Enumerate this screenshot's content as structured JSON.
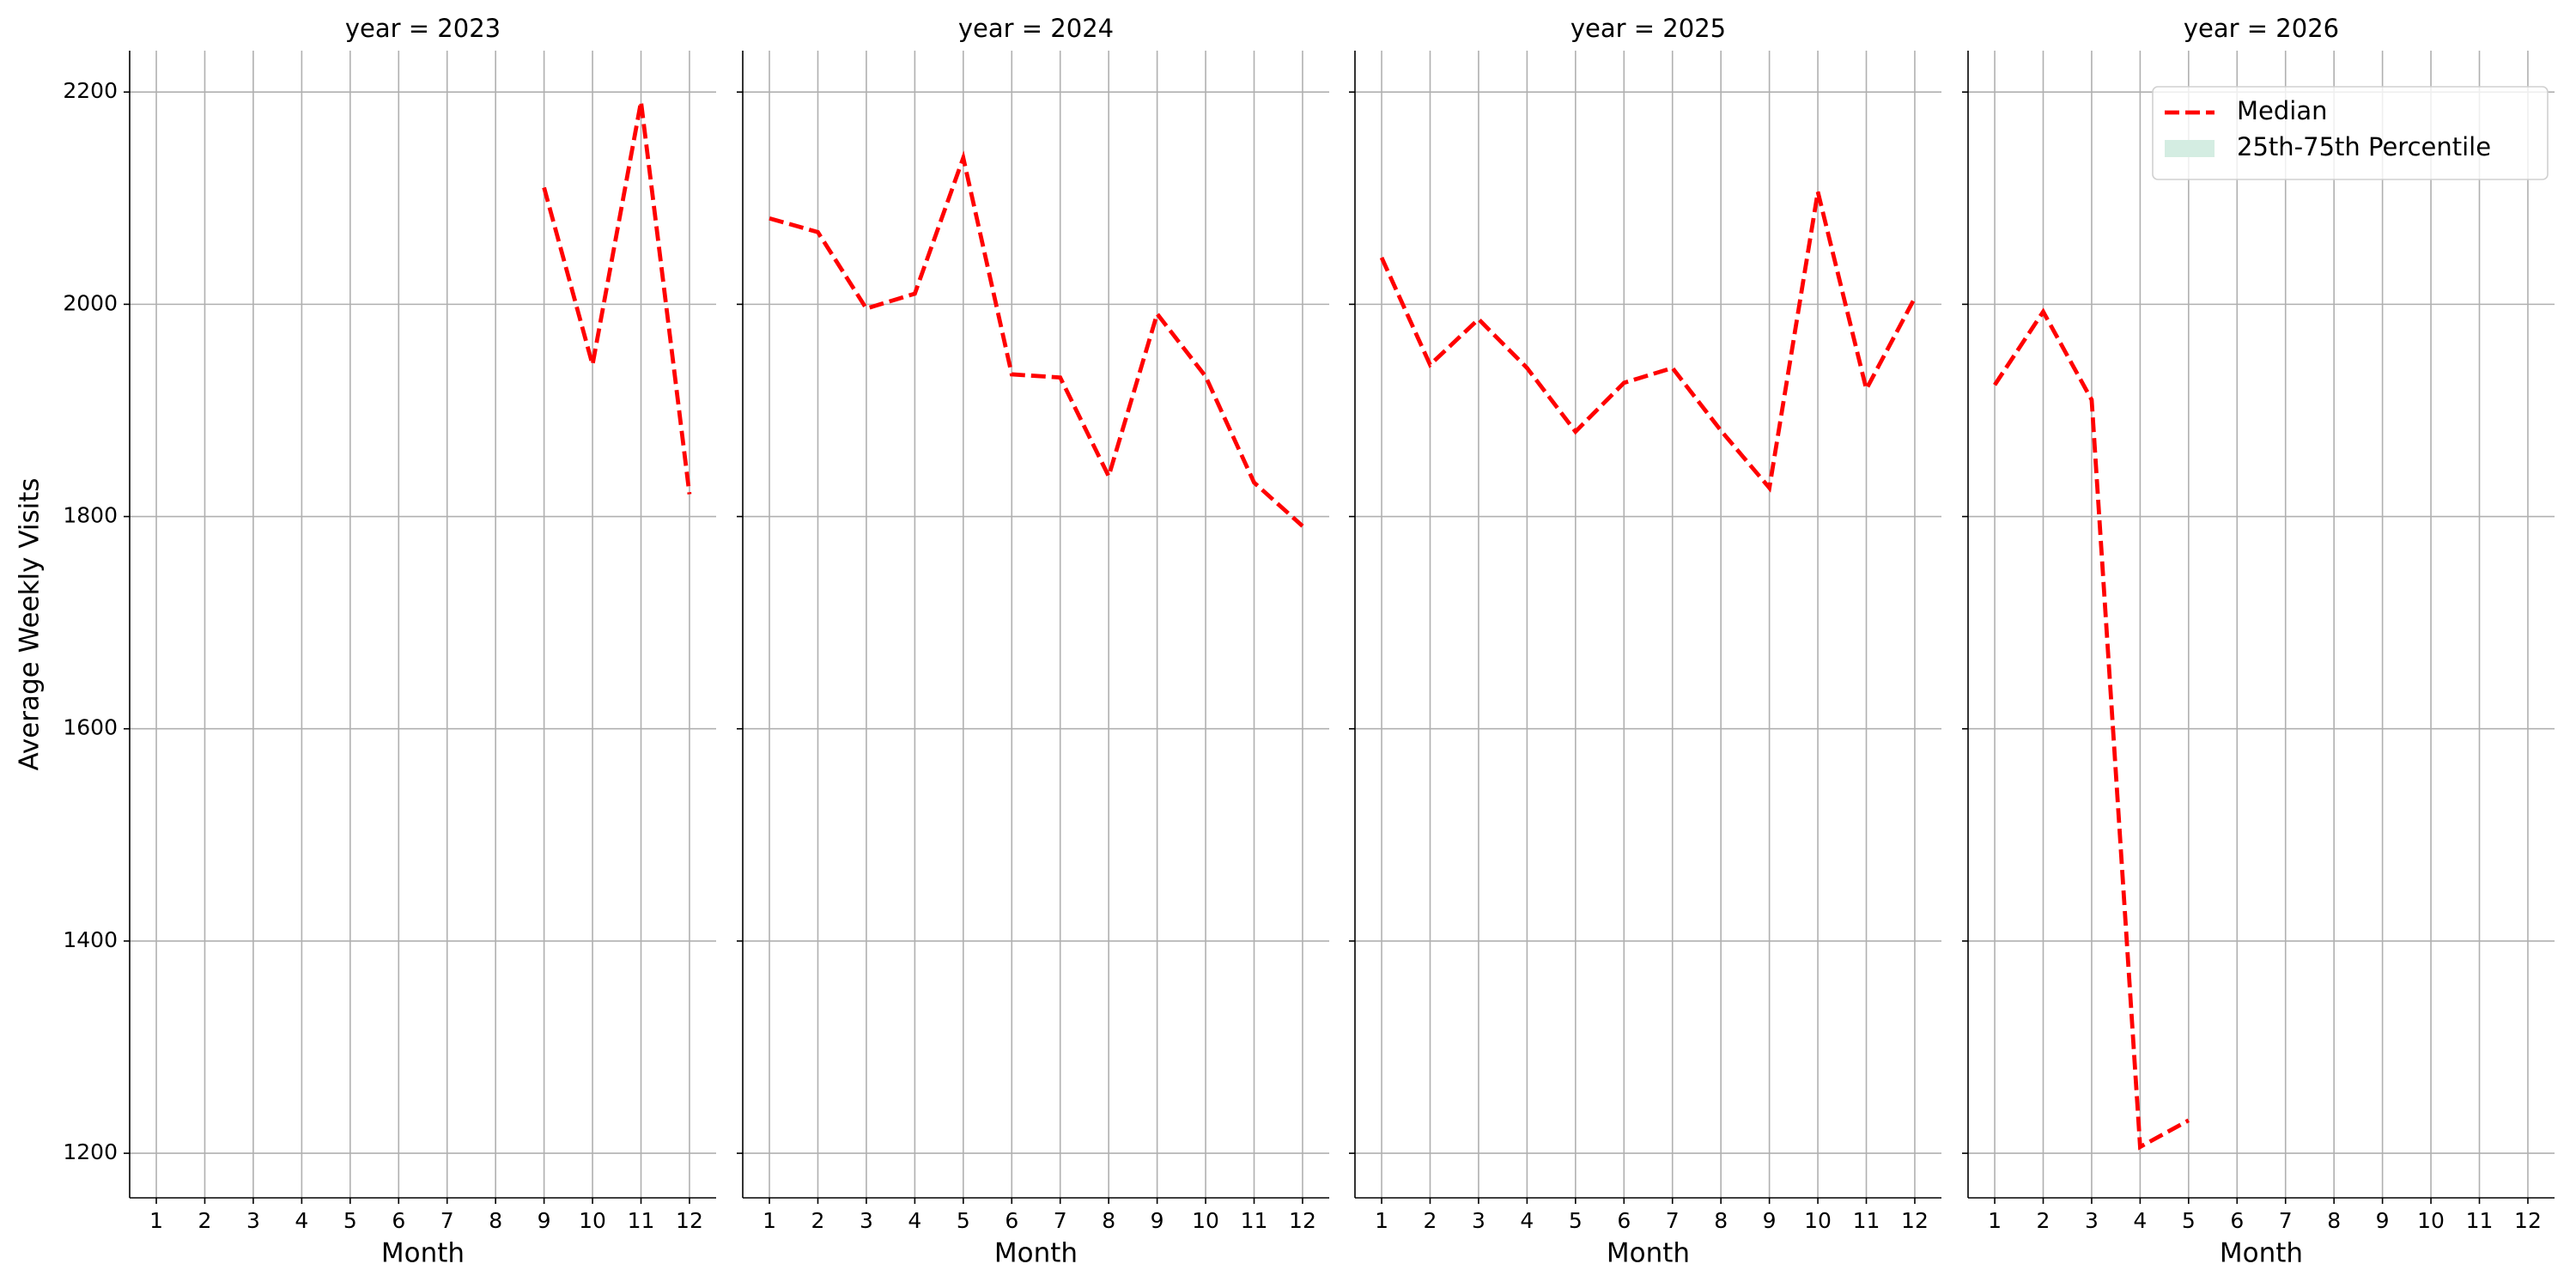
{
  "chart_data": [
    {
      "type": "line",
      "title": "year = 2023",
      "xlabel": "Month",
      "ylabel": "Average Weekly Visits",
      "x": [
        1,
        2,
        3,
        4,
        5,
        6,
        7,
        8,
        9,
        10,
        11,
        12
      ],
      "series": [
        {
          "name": "Median",
          "color": "#ff0000",
          "values": [
            null,
            null,
            null,
            null,
            null,
            null,
            null,
            null,
            2110,
            1943,
            2191,
            1821
          ]
        }
      ],
      "xlim": [
        0.45,
        12.55
      ],
      "ylim": [
        1158,
        2239
      ],
      "xticks": [
        1,
        2,
        3,
        4,
        5,
        6,
        7,
        8,
        9,
        10,
        11,
        12
      ],
      "yticks": [
        1200,
        1400,
        1600,
        1800,
        2000,
        2200
      ],
      "grid": true
    },
    {
      "type": "line",
      "title": "year = 2024",
      "xlabel": "Month",
      "x": [
        1,
        2,
        3,
        4,
        5,
        6,
        7,
        8,
        9,
        10,
        11,
        12
      ],
      "series": [
        {
          "name": "Median",
          "color": "#ff0000",
          "values": [
            2081,
            2068,
            1996,
            2010,
            2138,
            1934,
            1931,
            1838,
            1991,
            1932,
            1832,
            1791
          ]
        }
      ],
      "xlim": [
        0.45,
        12.55
      ],
      "ylim": [
        1158,
        2239
      ],
      "xticks": [
        1,
        2,
        3,
        4,
        5,
        6,
        7,
        8,
        9,
        10,
        11,
        12
      ],
      "yticks": [
        1200,
        1400,
        1600,
        1800,
        2000,
        2200
      ],
      "grid": true
    },
    {
      "type": "line",
      "title": "year = 2025",
      "xlabel": "Month",
      "x": [
        1,
        2,
        3,
        4,
        5,
        6,
        7,
        8,
        9,
        10,
        11,
        12
      ],
      "series": [
        {
          "name": "Median",
          "color": "#ff0000",
          "values": [
            2044,
            1943,
            1986,
            1940,
            1880,
            1926,
            1940,
            1881,
            1827,
            2106,
            1920,
            2006
          ]
        }
      ],
      "xlim": [
        0.45,
        12.55
      ],
      "ylim": [
        1158,
        2239
      ],
      "xticks": [
        1,
        2,
        3,
        4,
        5,
        6,
        7,
        8,
        9,
        10,
        11,
        12
      ],
      "yticks": [
        1200,
        1400,
        1600,
        1800,
        2000,
        2200
      ],
      "grid": true
    },
    {
      "type": "line",
      "title": "year = 2026",
      "xlabel": "Month",
      "x": [
        1,
        2,
        3,
        4,
        5,
        6,
        7,
        8,
        9,
        10,
        11,
        12
      ],
      "series": [
        {
          "name": "Median",
          "color": "#ff0000",
          "values": [
            1924,
            1993,
            1910,
            1206,
            1231,
            null,
            null,
            null,
            null,
            null,
            null,
            null
          ]
        }
      ],
      "bands": [
        {
          "name": "25th-75th Percentile",
          "color": "#d4ede2"
        }
      ],
      "legend": "upper right",
      "xlim": [
        0.45,
        12.55
      ],
      "ylim": [
        1158,
        2239
      ],
      "xticks": [
        1,
        2,
        3,
        4,
        5,
        6,
        7,
        8,
        9,
        10,
        11,
        12
      ],
      "yticks": [
        1200,
        1400,
        1600,
        1800,
        2000,
        2200
      ],
      "grid": true
    }
  ]
}
